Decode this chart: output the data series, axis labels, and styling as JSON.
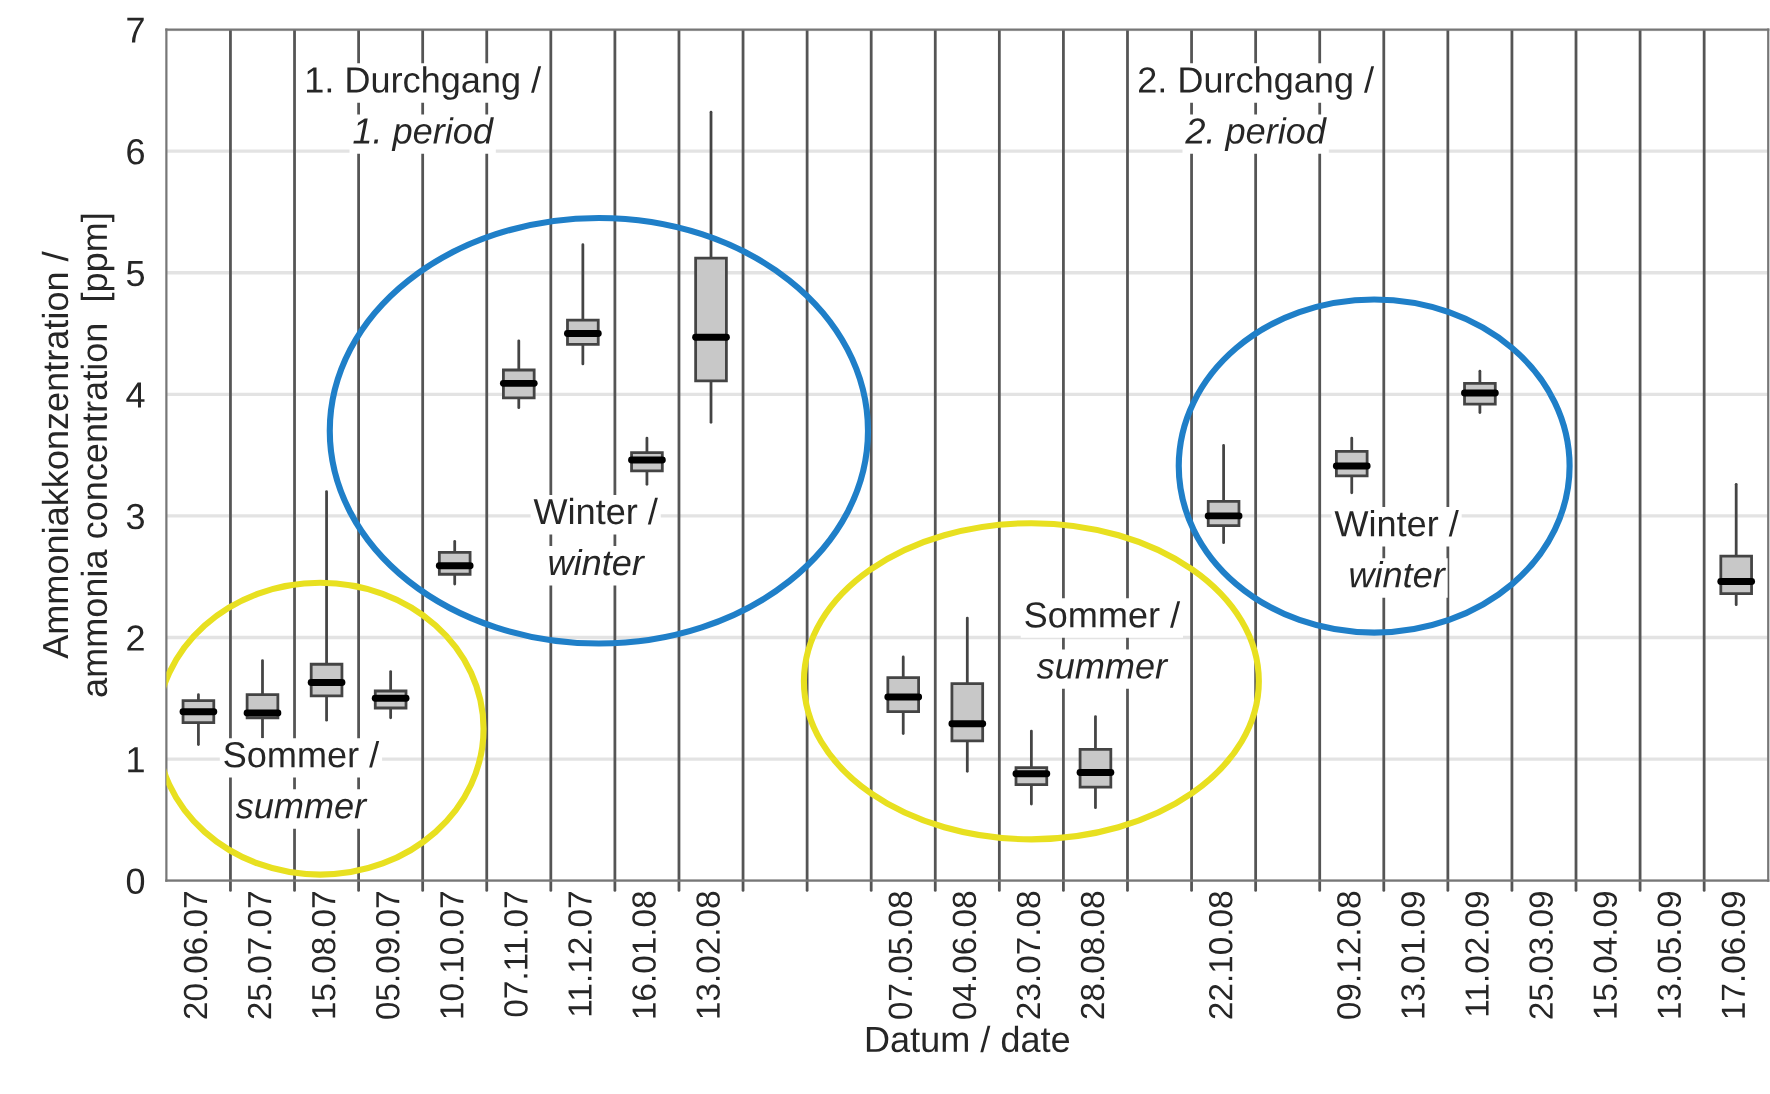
{
  "chart_data": {
    "type": "box",
    "xlabel": "Datum / date",
    "ylabel": "Ammoniakkonzentration /\nammonia concentration  [ppm]",
    "categories": [
      "20.06.07",
      "25.07.07",
      "15.08.07",
      "05.09.07",
      "10.10.07",
      "07.11.07",
      "11.12.07",
      "16.01.08",
      "13.02.08",
      null,
      null,
      "07.05.08",
      "04.06.08",
      "23.07.08",
      "28.08.08",
      null,
      "22.10.08",
      null,
      "09.12.08",
      "13.01.09",
      "11.02.09",
      "25.03.09",
      "15.04.09",
      "13.05.09",
      "17.06.09"
    ],
    "boxes": [
      {
        "low": 1.12,
        "q1": 1.3,
        "median": 1.39,
        "q3": 1.48,
        "high": 1.53
      },
      {
        "low": 1.18,
        "q1": 1.34,
        "median": 1.38,
        "q3": 1.53,
        "high": 1.81
      },
      {
        "low": 1.32,
        "q1": 1.52,
        "median": 1.63,
        "q3": 1.78,
        "high": 3.2
      },
      {
        "low": 1.34,
        "q1": 1.42,
        "median": 1.5,
        "q3": 1.56,
        "high": 1.72
      },
      {
        "low": 2.44,
        "q1": 2.52,
        "median": 2.59,
        "q3": 2.7,
        "high": 2.79
      },
      {
        "low": 3.89,
        "q1": 3.97,
        "median": 4.09,
        "q3": 4.2,
        "high": 4.44
      },
      {
        "low": 4.25,
        "q1": 4.41,
        "median": 4.5,
        "q3": 4.61,
        "high": 5.23
      },
      {
        "low": 3.26,
        "q1": 3.37,
        "median": 3.46,
        "q3": 3.52,
        "high": 3.64
      },
      {
        "low": 3.77,
        "q1": 4.11,
        "median": 4.47,
        "q3": 5.12,
        "high": 6.32
      },
      null,
      null,
      {
        "low": 1.21,
        "q1": 1.39,
        "median": 1.51,
        "q3": 1.67,
        "high": 1.84
      },
      {
        "low": 0.9,
        "q1": 1.15,
        "median": 1.29,
        "q3": 1.62,
        "high": 2.16
      },
      {
        "low": 0.63,
        "q1": 0.79,
        "median": 0.88,
        "q3": 0.93,
        "high": 1.23
      },
      {
        "low": 0.6,
        "q1": 0.77,
        "median": 0.89,
        "q3": 1.08,
        "high": 1.35
      },
      null,
      {
        "low": 2.78,
        "q1": 2.92,
        "median": 3.0,
        "q3": 3.12,
        "high": 3.58
      },
      null,
      {
        "low": 3.19,
        "q1": 3.33,
        "median": 3.41,
        "q3": 3.53,
        "high": 3.64
      },
      null,
      {
        "low": 3.85,
        "q1": 3.92,
        "median": 4.01,
        "q3": 4.09,
        "high": 4.19
      },
      null,
      null,
      null,
      {
        "low": 2.27,
        "q1": 2.36,
        "median": 2.46,
        "q3": 2.67,
        "high": 3.26
      }
    ],
    "color": "#c8c8c8",
    "ylim": [
      0,
      7
    ],
    "yticks": [
      0,
      1,
      2,
      3,
      4,
      5,
      6,
      7
    ],
    "grid": true,
    "annotations": [
      "1. Durchgang /\n1. period",
      "2. Durchgang /\n2. period",
      "Sommer /\nsummer",
      "Winter /\nwinter",
      "Sommer /\nsummer",
      "Winter /\nwinter"
    ]
  }
}
